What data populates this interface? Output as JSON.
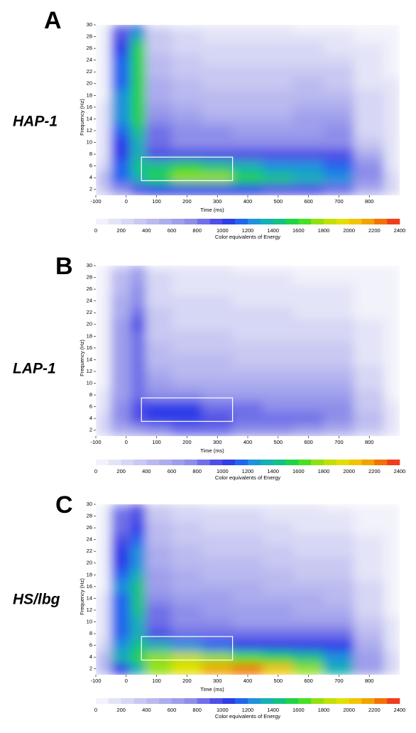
{
  "chart_data": [
    {
      "type": "heatmap",
      "panel": "A",
      "group": "HAP-1",
      "xlabel": "Time (ms)",
      "ylabel": "Frequency (Hz)",
      "colorbar_label": "Color equivalents of Energy",
      "xlim": [
        -100,
        900
      ],
      "ylim": [
        1,
        30
      ],
      "xticks": [
        -100,
        0,
        100,
        200,
        300,
        400,
        500,
        600,
        700,
        800
      ],
      "yticks": [
        2,
        4,
        6,
        8,
        10,
        12,
        14,
        16,
        18,
        20,
        22,
        24,
        26,
        28,
        30
      ],
      "clim": [
        0,
        2400
      ],
      "cticks": [
        0,
        200,
        400,
        600,
        800,
        1000,
        1200,
        1400,
        1600,
        1800,
        2000,
        2200,
        2400
      ],
      "colors": [
        "#f2f2fb",
        "#e4e4f8",
        "#d6d6f5",
        "#c8c8f2",
        "#babaf0",
        "#acacee",
        "#9e9eec",
        "#8e8eea",
        "#7070e8",
        "#4f4fe6",
        "#2e3ee8",
        "#2266ee",
        "#1f92dc",
        "#14b0b4",
        "#12c284",
        "#22d246",
        "#46e024",
        "#92e012",
        "#c2e004",
        "#e2e002",
        "#f2c402",
        "#f2a202",
        "#f27202",
        "#ee3e1e"
      ],
      "x": [
        -100,
        0,
        30,
        100,
        200,
        300,
        400,
        500,
        600,
        700,
        800,
        900
      ],
      "y": [
        2,
        4,
        6,
        8,
        10,
        12,
        14,
        16,
        18,
        20,
        22,
        24,
        26,
        28,
        30
      ],
      "z": [
        [
          300,
          700,
          900,
          1000,
          1000,
          1000,
          1000,
          900,
          900,
          800,
          500,
          200
        ],
        [
          400,
          1100,
          1300,
          1500,
          1700,
          1700,
          1500,
          1400,
          1300,
          1200,
          700,
          200
        ],
        [
          200,
          1100,
          1400,
          1400,
          1500,
          1400,
          1300,
          1200,
          1200,
          1100,
          700,
          150
        ],
        [
          150,
          1000,
          1300,
          900,
          900,
          900,
          900,
          900,
          900,
          900,
          500,
          100
        ],
        [
          100,
          1000,
          1300,
          800,
          700,
          700,
          700,
          700,
          700,
          700,
          300,
          100
        ],
        [
          100,
          1100,
          1400,
          800,
          700,
          700,
          600,
          600,
          650,
          700,
          200,
          100
        ],
        [
          100,
          1200,
          1500,
          700,
          600,
          500,
          500,
          500,
          600,
          600,
          200,
          100
        ],
        [
          100,
          1200,
          1500,
          600,
          500,
          450,
          450,
          450,
          500,
          500,
          200,
          100
        ],
        [
          80,
          1200,
          1550,
          500,
          400,
          400,
          400,
          400,
          450,
          400,
          200,
          100
        ],
        [
          80,
          1100,
          1500,
          500,
          400,
          350,
          350,
          350,
          400,
          350,
          150,
          100
        ],
        [
          60,
          1100,
          1550,
          450,
          350,
          300,
          300,
          300,
          300,
          300,
          150,
          80
        ],
        [
          50,
          1100,
          1550,
          400,
          300,
          250,
          250,
          250,
          250,
          250,
          100,
          60
        ],
        [
          50,
          1000,
          1500,
          350,
          250,
          200,
          200,
          200,
          200,
          150,
          100,
          50
        ],
        [
          40,
          900,
          1300,
          300,
          200,
          150,
          150,
          150,
          100,
          100,
          80,
          40
        ],
        [
          30,
          800,
          1100,
          250,
          150,
          100,
          100,
          100,
          50,
          50,
          50,
          30
        ]
      ],
      "roi": {
        "x": [
          50,
          350
        ],
        "y": [
          3.5,
          7.5
        ]
      }
    },
    {
      "type": "heatmap",
      "panel": "B",
      "group": "LAP-1",
      "xlabel": "Time (ms)",
      "ylabel": "Frequency (Hz)",
      "colorbar_label": "Color equivalents of Energy",
      "xlim": [
        -100,
        900
      ],
      "ylim": [
        1,
        30
      ],
      "xticks": [
        -100,
        0,
        100,
        200,
        300,
        400,
        500,
        600,
        700,
        800
      ],
      "yticks": [
        2,
        4,
        6,
        8,
        10,
        12,
        14,
        16,
        18,
        20,
        22,
        24,
        26,
        28,
        30
      ],
      "clim": [
        0,
        2400
      ],
      "cticks": [
        0,
        200,
        400,
        600,
        800,
        1000,
        1200,
        1400,
        1600,
        1800,
        2000,
        2200,
        2400
      ],
      "colors": [
        "#f2f2fb",
        "#e4e4f8",
        "#d6d6f5",
        "#c8c8f2",
        "#babaf0",
        "#acacee",
        "#9e9eec",
        "#8e8eea",
        "#7070e8",
        "#4f4fe6",
        "#2e3ee8",
        "#2266ee",
        "#1f92dc",
        "#14b0b4",
        "#12c284",
        "#22d246",
        "#46e024",
        "#92e012",
        "#c2e004",
        "#e2e002",
        "#f2c402",
        "#f2a202",
        "#f27202",
        "#ee3e1e"
      ],
      "x": [
        -100,
        0,
        30,
        100,
        200,
        300,
        400,
        500,
        600,
        700,
        800,
        900
      ],
      "y": [
        2,
        4,
        6,
        8,
        10,
        12,
        14,
        16,
        18,
        20,
        22,
        24,
        26,
        28,
        30
      ],
      "z": [
        [
          200,
          500,
          600,
          700,
          800,
          800,
          750,
          700,
          600,
          500,
          300,
          100
        ],
        [
          250,
          700,
          900,
          1000,
          1000,
          900,
          850,
          800,
          800,
          700,
          400,
          100
        ],
        [
          150,
          700,
          900,
          1000,
          1000,
          850,
          800,
          750,
          750,
          700,
          350,
          100
        ],
        [
          100,
          600,
          800,
          700,
          700,
          650,
          650,
          650,
          600,
          600,
          300,
          80
        ],
        [
          80,
          600,
          800,
          600,
          550,
          500,
          500,
          500,
          500,
          500,
          250,
          80
        ],
        [
          80,
          600,
          800,
          500,
          450,
          450,
          400,
          400,
          400,
          400,
          200,
          60
        ],
        [
          60,
          600,
          800,
          450,
          400,
          400,
          350,
          350,
          350,
          350,
          150,
          60
        ],
        [
          60,
          600,
          800,
          400,
          350,
          350,
          300,
          300,
          300,
          300,
          150,
          50
        ],
        [
          50,
          600,
          850,
          350,
          300,
          300,
          250,
          250,
          250,
          250,
          100,
          50
        ],
        [
          50,
          600,
          900,
          300,
          250,
          250,
          250,
          200,
          200,
          200,
          100,
          40
        ],
        [
          40,
          550,
          800,
          300,
          250,
          250,
          200,
          200,
          150,
          150,
          80,
          40
        ],
        [
          40,
          500,
          750,
          250,
          200,
          200,
          150,
          150,
          150,
          100,
          60,
          30
        ],
        [
          30,
          450,
          700,
          200,
          150,
          150,
          150,
          100,
          100,
          100,
          50,
          30
        ],
        [
          30,
          400,
          650,
          200,
          150,
          100,
          100,
          100,
          80,
          80,
          40,
          20
        ],
        [
          20,
          350,
          600,
          150,
          100,
          100,
          80,
          80,
          60,
          60,
          40,
          20
        ]
      ],
      "roi": {
        "x": [
          50,
          350
        ],
        "y": [
          3.5,
          7.5
        ]
      }
    },
    {
      "type": "heatmap",
      "panel": "C",
      "group": "HS/lbg",
      "xlabel": "Time (ms)",
      "ylabel": "Frequency (Hz)",
      "colorbar_label": "Color equivalents of Energy",
      "xlim": [
        -100,
        900
      ],
      "ylim": [
        1,
        30
      ],
      "xticks": [
        -100,
        0,
        100,
        200,
        300,
        400,
        500,
        600,
        700,
        800
      ],
      "yticks": [
        2,
        4,
        6,
        8,
        10,
        12,
        14,
        16,
        18,
        20,
        22,
        24,
        26,
        28,
        30
      ],
      "clim": [
        0,
        2400
      ],
      "cticks": [
        0,
        200,
        400,
        600,
        800,
        1000,
        1200,
        1400,
        1600,
        1800,
        2000,
        2200,
        2400
      ],
      "colors": [
        "#f2f2fb",
        "#e4e4f8",
        "#d6d6f5",
        "#c8c8f2",
        "#babaf0",
        "#acacee",
        "#9e9eec",
        "#8e8eea",
        "#7070e8",
        "#4f4fe6",
        "#2e3ee8",
        "#2266ee",
        "#1f92dc",
        "#14b0b4",
        "#12c284",
        "#22d246",
        "#46e024",
        "#92e012",
        "#c2e004",
        "#e2e002",
        "#f2c402",
        "#f2a202",
        "#f27202",
        "#ee3e1e"
      ],
      "x": [
        -100,
        0,
        30,
        100,
        200,
        300,
        400,
        500,
        600,
        700,
        800,
        900
      ],
      "y": [
        2,
        4,
        6,
        8,
        10,
        12,
        14,
        16,
        18,
        20,
        22,
        24,
        26,
        28,
        30
      ],
      "z": [
        [
          400,
          1000,
          1300,
          1700,
          1900,
          2100,
          2200,
          2000,
          1700,
          1300,
          600,
          200
        ],
        [
          400,
          1300,
          1500,
          1700,
          1800,
          1700,
          1600,
          1500,
          1400,
          1200,
          600,
          200
        ],
        [
          200,
          1200,
          1400,
          1300,
          1200,
          1100,
          1000,
          1000,
          1000,
          1000,
          500,
          150
        ],
        [
          150,
          1100,
          1300,
          900,
          800,
          800,
          800,
          800,
          800,
          800,
          400,
          100
        ],
        [
          100,
          1100,
          1300,
          800,
          700,
          700,
          650,
          650,
          650,
          600,
          300,
          100
        ],
        [
          100,
          1100,
          1400,
          800,
          700,
          650,
          600,
          600,
          550,
          500,
          250,
          80
        ],
        [
          100,
          1100,
          1400,
          700,
          600,
          600,
          550,
          500,
          500,
          450,
          200,
          80
        ],
        [
          80,
          1200,
          1400,
          650,
          550,
          500,
          500,
          450,
          400,
          400,
          200,
          60
        ],
        [
          80,
          1100,
          1300,
          600,
          500,
          450,
          450,
          400,
          350,
          350,
          150,
          60
        ],
        [
          60,
          1000,
          1250,
          550,
          450,
          400,
          400,
          350,
          300,
          300,
          150,
          50
        ],
        [
          60,
          1000,
          1200,
          500,
          400,
          350,
          350,
          300,
          250,
          250,
          100,
          50
        ],
        [
          50,
          900,
          1100,
          450,
          350,
          300,
          300,
          250,
          200,
          200,
          100,
          40
        ],
        [
          40,
          850,
          1000,
          400,
          300,
          250,
          250,
          200,
          150,
          150,
          80,
          40
        ],
        [
          40,
          800,
          950,
          350,
          250,
          200,
          200,
          150,
          100,
          100,
          60,
          30
        ],
        [
          30,
          700,
          900,
          300,
          200,
          150,
          150,
          100,
          100,
          80,
          50,
          30
        ]
      ],
      "roi": {
        "x": [
          50,
          350
        ],
        "y": [
          3.5,
          7.5
        ]
      }
    }
  ]
}
